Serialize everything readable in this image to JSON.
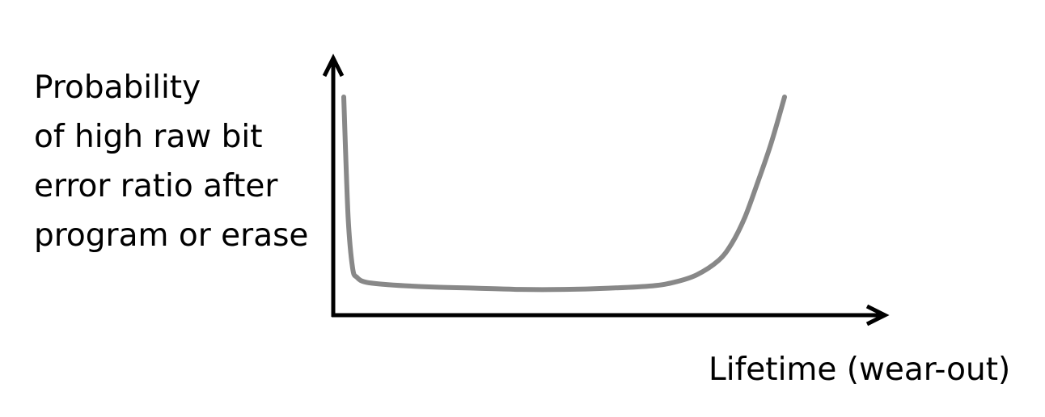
{
  "chart_data": {
    "type": "line",
    "title": "",
    "ylabel_lines": [
      "Probability",
      "of high raw bit",
      "error ratio after",
      "program or erase"
    ],
    "xlabel": "Lifetime (wear-out)",
    "ticks": "none",
    "grid": false,
    "axes": "arrowed",
    "curve_shape": "bathtub",
    "x": [
      0.0,
      0.01,
      0.02,
      0.03,
      0.05,
      0.1,
      0.2,
      0.3,
      0.4,
      0.5,
      0.6,
      0.7,
      0.75,
      0.8,
      0.85,
      0.88,
      0.91,
      0.94,
      0.97,
      1.0
    ],
    "y": [
      0.85,
      0.35,
      0.14,
      0.1,
      0.08,
      0.07,
      0.06,
      0.055,
      0.05,
      0.05,
      0.055,
      0.065,
      0.08,
      0.11,
      0.17,
      0.24,
      0.35,
      0.5,
      0.66,
      0.85
    ],
    "xlim": [
      0,
      1
    ],
    "ylim": [
      0,
      1
    ],
    "colors": {
      "axis": "#000000",
      "curve": "#888888"
    }
  }
}
